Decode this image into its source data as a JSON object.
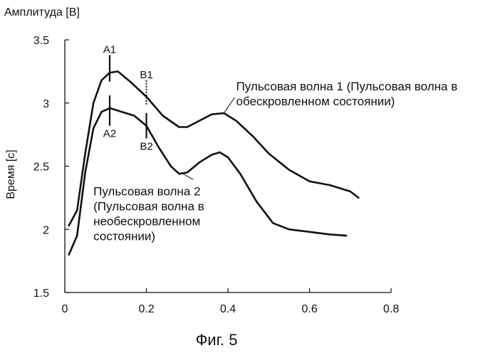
{
  "chart_data": {
    "type": "line",
    "title": "",
    "caption": "Фиг. 5",
    "ylabel_top": "Амплитуда [В]",
    "ylabel_side": "Время [с]",
    "xlabel": "",
    "xlim": [
      0,
      0.8
    ],
    "ylim": [
      1.5,
      3.5
    ],
    "x_ticks": [
      0,
      0.2,
      0.4,
      0.6,
      0.8
    ],
    "x_tick_labels": [
      "0",
      "0.2",
      "0.4",
      "0.6",
      "0.8"
    ],
    "y_ticks": [
      1.5,
      2,
      2.5,
      3,
      3.5
    ],
    "y_tick_labels": [
      "1.5",
      "2",
      "2.5",
      "3",
      "3.5"
    ],
    "grid": false,
    "legend": "none",
    "series": [
      {
        "name": "Пульсовая волна 1",
        "color": "#111111",
        "x": [
          0.01,
          0.03,
          0.05,
          0.07,
          0.09,
          0.11,
          0.13,
          0.16,
          0.2,
          0.24,
          0.28,
          0.3,
          0.33,
          0.36,
          0.39,
          0.42,
          0.46,
          0.5,
          0.55,
          0.6,
          0.65,
          0.7,
          0.72
        ],
        "y": [
          2.03,
          2.15,
          2.6,
          3.0,
          3.18,
          3.24,
          3.25,
          3.17,
          3.05,
          2.9,
          2.81,
          2.81,
          2.86,
          2.91,
          2.92,
          2.86,
          2.74,
          2.6,
          2.47,
          2.38,
          2.35,
          2.3,
          2.25
        ]
      },
      {
        "name": "Пульсовая волна 2",
        "color": "#111111",
        "x": [
          0.01,
          0.03,
          0.05,
          0.07,
          0.09,
          0.11,
          0.14,
          0.17,
          0.2,
          0.23,
          0.26,
          0.28,
          0.3,
          0.33,
          0.36,
          0.38,
          0.4,
          0.43,
          0.47,
          0.51,
          0.55,
          0.6,
          0.65,
          0.69
        ],
        "y": [
          1.8,
          1.95,
          2.45,
          2.8,
          2.93,
          2.96,
          2.93,
          2.9,
          2.82,
          2.65,
          2.5,
          2.44,
          2.45,
          2.53,
          2.59,
          2.61,
          2.57,
          2.44,
          2.22,
          2.05,
          2.0,
          1.98,
          1.96,
          1.95
        ]
      }
    ],
    "markers": [
      {
        "label": "A1",
        "x": 0.11,
        "y_from": 3.17,
        "y_to": 3.38,
        "style": "solid",
        "label_pos": "above"
      },
      {
        "label": "B1",
        "x": 0.2,
        "y_from": 2.98,
        "y_to": 3.18,
        "style": "dotted",
        "label_pos": "above"
      },
      {
        "label": "A2",
        "x": 0.11,
        "y_from": 2.82,
        "y_to": 3.06,
        "style": "solid",
        "label_pos": "below"
      },
      {
        "label": "B2",
        "x": 0.2,
        "y_from": 2.72,
        "y_to": 2.92,
        "style": "solid",
        "label_pos": "below"
      }
    ],
    "annotations": [
      {
        "series": 0,
        "lines": [
          "Пульсовая волна 1 (Пульсовая волна в",
          "обескровленном состоянии)"
        ],
        "x": 0.42,
        "y": 3.1,
        "anchor_x": 0.39,
        "anchor_y": 2.92
      },
      {
        "series": 1,
        "lines": [
          "Пульсовая волна 2",
          "(Пульсовая волна в",
          "необескровленном",
          "состоянии)"
        ],
        "x": 0.07,
        "y": 2.27,
        "anchor_x": 0.29,
        "anchor_y": 2.44
      }
    ]
  }
}
